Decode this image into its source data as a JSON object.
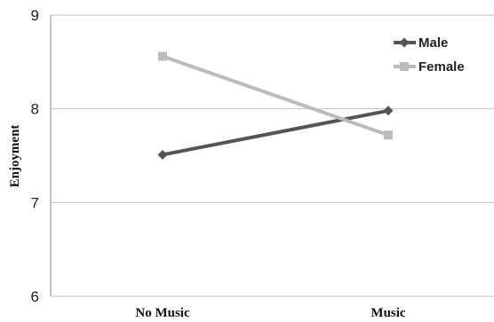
{
  "chart_data": {
    "type": "line",
    "title": "",
    "xlabel": "",
    "ylabel": "Enjoyment",
    "categories": [
      "No Music",
      "Music"
    ],
    "ylim": [
      6,
      9
    ],
    "yticks": [
      "6",
      "7",
      "8",
      "9"
    ],
    "grid": true,
    "legend": "top-right",
    "series": [
      {
        "name": "Male",
        "values": [
          7.51,
          7.98
        ],
        "color": "#555555",
        "marker": "diamond"
      },
      {
        "name": "Female",
        "values": [
          8.56,
          7.72
        ],
        "color": "#bbbbbb",
        "marker": "square"
      }
    ]
  }
}
